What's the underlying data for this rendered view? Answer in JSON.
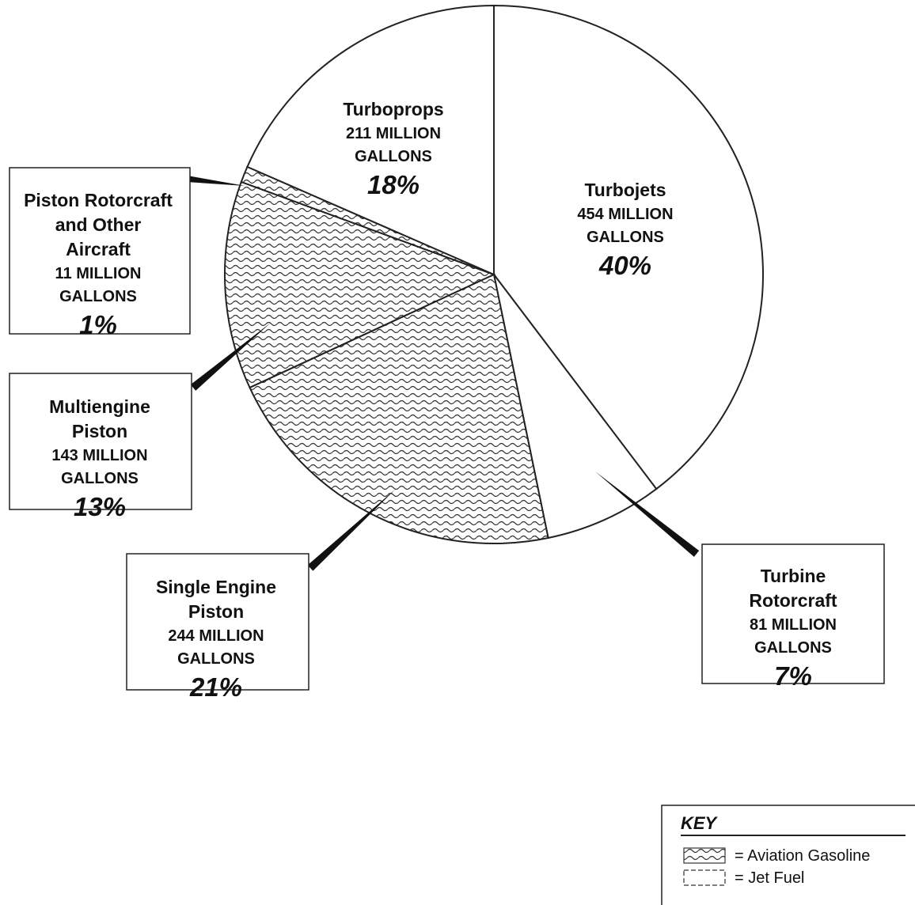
{
  "chart_data": {
    "type": "pie",
    "unit": "MILLION GALLONS",
    "slices": [
      {
        "label": "Turbojets",
        "value": 454,
        "gallons_text": "454 MILLION GALLONS",
        "percent": "40%",
        "fuel": "jet"
      },
      {
        "label": "Turbine Rotorcraft",
        "value": 81,
        "gallons_text": "81 MILLION GALLONS",
        "percent": "7%",
        "fuel": "jet"
      },
      {
        "label": "Single Engine Piston",
        "value": 244,
        "gallons_text": "244 MILLION GALLONS",
        "percent": "21%",
        "fuel": "avgas"
      },
      {
        "label": "Multiengine Piston",
        "value": 143,
        "gallons_text": "143 MILLION GALLONS",
        "percent": "13%",
        "fuel": "avgas"
      },
      {
        "label": "Piston Rotorcraft and Other Aircraft",
        "value": 11,
        "gallons_text": "11 MILLION GALLONS",
        "percent": "1%",
        "fuel": "avgas"
      },
      {
        "label": "Turboprops",
        "value": 211,
        "gallons_text": "211 MILLION GALLONS",
        "percent": "18%",
        "fuel": "jet"
      }
    ],
    "key": {
      "title": "KEY",
      "items": [
        {
          "label": "= Aviation Gasoline",
          "pattern": "avgas"
        },
        {
          "label": "= Jet Fuel",
          "pattern": "jet"
        }
      ]
    }
  }
}
